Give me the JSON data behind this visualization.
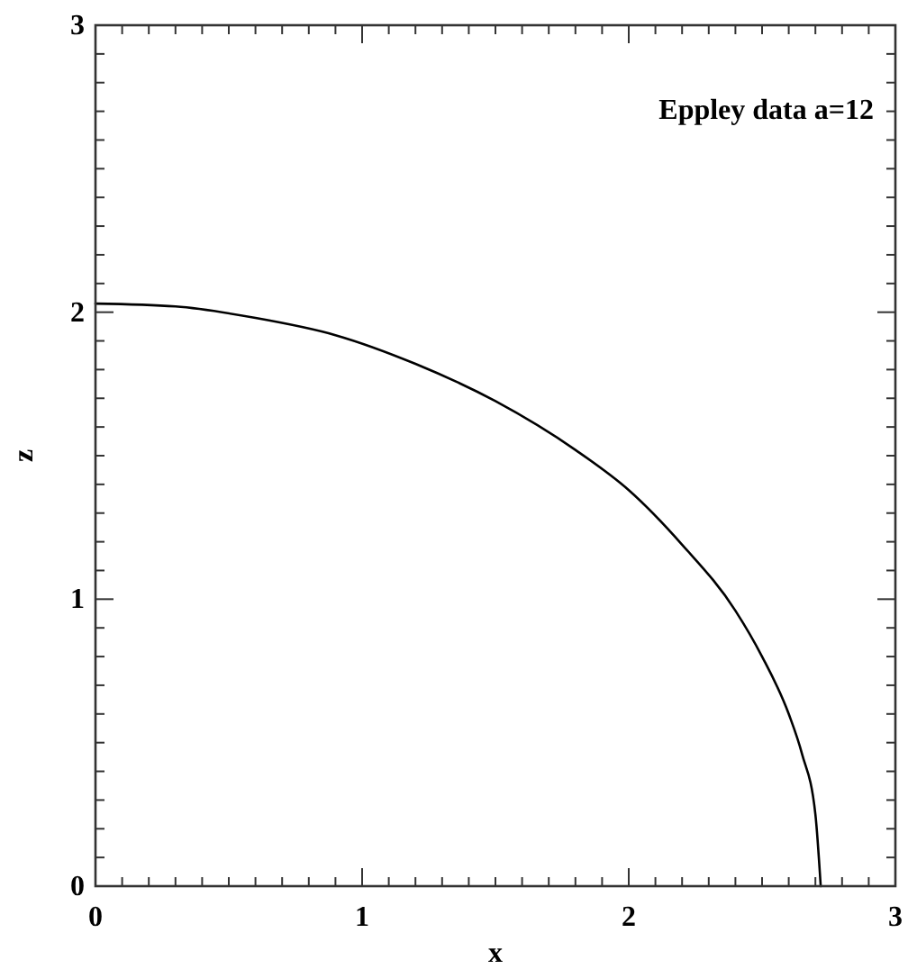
{
  "chart_data": {
    "type": "line",
    "xlabel": "x",
    "ylabel": "z",
    "annotations": [
      {
        "text": "Eppley data a=12"
      }
    ],
    "x": [
      0,
      0.3,
      0.6,
      0.9,
      1.2,
      1.5,
      1.8,
      2.0,
      2.2,
      2.4,
      2.5,
      2.6,
      2.65,
      2.7,
      2.72
    ],
    "series": [
      {
        "color": "#000000",
        "values": [
          2.03,
          2.02,
          1.98,
          1.92,
          1.82,
          1.69,
          1.52,
          1.38,
          1.19,
          0.96,
          0.8,
          0.6,
          0.46,
          0.25,
          0
        ]
      }
    ],
    "xlim": [
      0,
      3
    ],
    "ylim": [
      0,
      3
    ],
    "xticks": [
      0,
      {
        "value": 0.1,
        "label": null
      },
      {
        "value": 0.2,
        "label": null
      },
      {
        "value": 0.3,
        "label": null
      },
      {
        "value": 0.4,
        "label": null
      },
      {
        "value": 0.5,
        "label": null
      },
      {
        "value": 0.6,
        "label": null
      },
      {
        "value": 0.7,
        "label": null
      },
      {
        "value": 0.8,
        "label": null
      },
      {
        "value": 0.9,
        "label": null
      },
      1,
      {
        "value": 1.1,
        "label": null
      },
      {
        "value": 1.2,
        "label": null
      },
      {
        "value": 1.3,
        "label": null
      },
      {
        "value": 1.4,
        "label": null
      },
      {
        "value": 1.5,
        "label": null
      },
      {
        "value": 1.6,
        "label": null
      },
      {
        "value": 1.7,
        "label": null
      },
      {
        "value": 1.8,
        "label": null
      },
      {
        "value": 1.9,
        "label": null
      },
      2,
      {
        "value": 2.1,
        "label": null
      },
      {
        "value": 2.2,
        "label": null
      },
      {
        "value": 2.3,
        "label": null
      },
      {
        "value": 2.4,
        "label": null
      },
      {
        "value": 2.5,
        "label": null
      },
      {
        "value": 2.6,
        "label": null
      },
      {
        "value": 2.7,
        "label": null
      },
      {
        "value": 2.8,
        "label": null
      },
      {
        "value": 2.9,
        "label": null
      },
      3
    ],
    "yticks": [
      0,
      {
        "value": 0.1,
        "label": null
      },
      {
        "value": 0.2,
        "label": null
      },
      {
        "value": 0.3,
        "label": null
      },
      {
        "value": 0.4,
        "label": null
      },
      {
        "value": 0.5,
        "label": null
      },
      {
        "value": 0.6,
        "label": null
      },
      {
        "value": 0.7,
        "label": null
      },
      {
        "value": 0.8,
        "label": null
      },
      {
        "value": 0.9,
        "label": null
      },
      1,
      {
        "value": 1.1,
        "label": null
      },
      {
        "value": 1.2,
        "label": null
      },
      {
        "value": 1.3,
        "label": null
      },
      {
        "value": 1.4,
        "label": null
      },
      {
        "value": 1.5,
        "label": null
      },
      {
        "value": 1.6,
        "label": null
      },
      {
        "value": 1.7,
        "label": null
      },
      {
        "value": 1.8,
        "label": null
      },
      {
        "value": 1.9,
        "label": null
      },
      2,
      {
        "value": 2.1,
        "label": null
      },
      {
        "value": 2.2,
        "label": null
      },
      {
        "value": 2.3,
        "label": null
      },
      {
        "value": 2.4,
        "label": null
      },
      {
        "value": 2.5,
        "label": null
      },
      {
        "value": 2.6,
        "label": null
      },
      {
        "value": 2.7,
        "label": null
      },
      {
        "value": 2.8,
        "label": null
      },
      {
        "value": 2.9,
        "label": null
      },
      3
    ],
    "grid": false,
    "marker": "none",
    "line_style": "solid"
  }
}
